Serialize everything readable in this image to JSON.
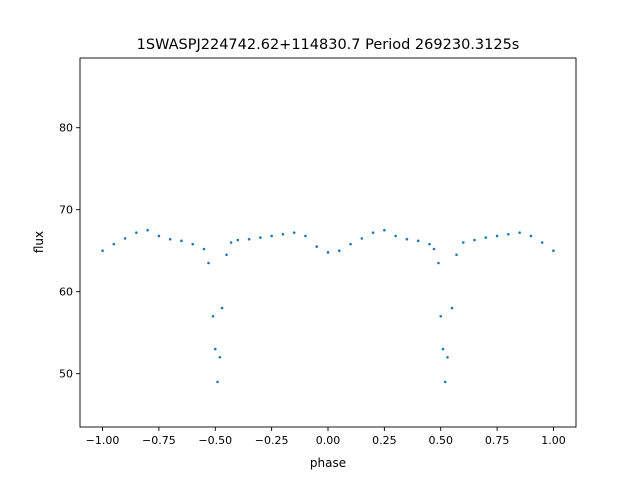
{
  "chart_data": {
    "type": "scatter",
    "title": "1SWASPJ224742.62+114830.7 Period 269230.3125s",
    "xlabel": "phase",
    "ylabel": "flux",
    "xlim": [
      -1.1,
      1.1
    ],
    "ylim": [
      43.5,
      88.5
    ],
    "x_ticks": [
      -1.0,
      -0.75,
      -0.5,
      -0.25,
      0.0,
      0.25,
      0.5,
      0.75,
      1.0
    ],
    "x_tick_labels": [
      "−1.00",
      "−0.75",
      "−0.50",
      "−0.25",
      "0.00",
      "0.25",
      "0.50",
      "0.75",
      "1.00"
    ],
    "y_ticks": [
      50,
      60,
      70,
      80
    ],
    "y_tick_labels": [
      "50",
      "60",
      "70",
      "80"
    ],
    "grid": false,
    "marker_color": "#1f77b4",
    "series": [
      {
        "x": [
          -1.0,
          -0.95,
          -0.9,
          -0.85,
          -0.8,
          -0.75,
          -0.7,
          -0.65,
          -0.6,
          -0.55,
          -0.53,
          -0.51,
          -0.5,
          -0.49,
          -0.48,
          -0.47,
          -0.45,
          -0.43,
          -0.4,
          -0.35,
          -0.3,
          -0.25,
          -0.2,
          -0.15,
          -0.1,
          -0.05,
          0.0,
          0.05,
          0.1,
          0.15,
          0.2,
          0.25,
          0.3,
          0.35,
          0.4,
          0.45,
          0.47,
          0.49,
          0.5,
          0.51,
          0.52,
          0.53,
          0.55,
          0.57,
          0.6,
          0.65,
          0.7,
          0.75,
          0.8,
          0.85,
          0.9,
          0.95,
          1.0
        ],
        "y": [
          65.0,
          65.8,
          66.5,
          67.2,
          67.5,
          66.8,
          66.4,
          66.2,
          65.8,
          65.2,
          63.5,
          57.0,
          53.0,
          49.0,
          52.0,
          58.0,
          64.5,
          66.0,
          66.3,
          66.4,
          66.6,
          66.8,
          67.0,
          67.2,
          66.8,
          65.5,
          64.8,
          65.0,
          65.8,
          66.5,
          67.2,
          67.5,
          66.8,
          66.4,
          66.2,
          65.8,
          65.2,
          63.5,
          57.0,
          53.0,
          49.0,
          52.0,
          58.0,
          64.5,
          66.0,
          66.3,
          66.6,
          66.8,
          67.0,
          67.2,
          66.8,
          66.0,
          65.0
        ]
      }
    ]
  }
}
